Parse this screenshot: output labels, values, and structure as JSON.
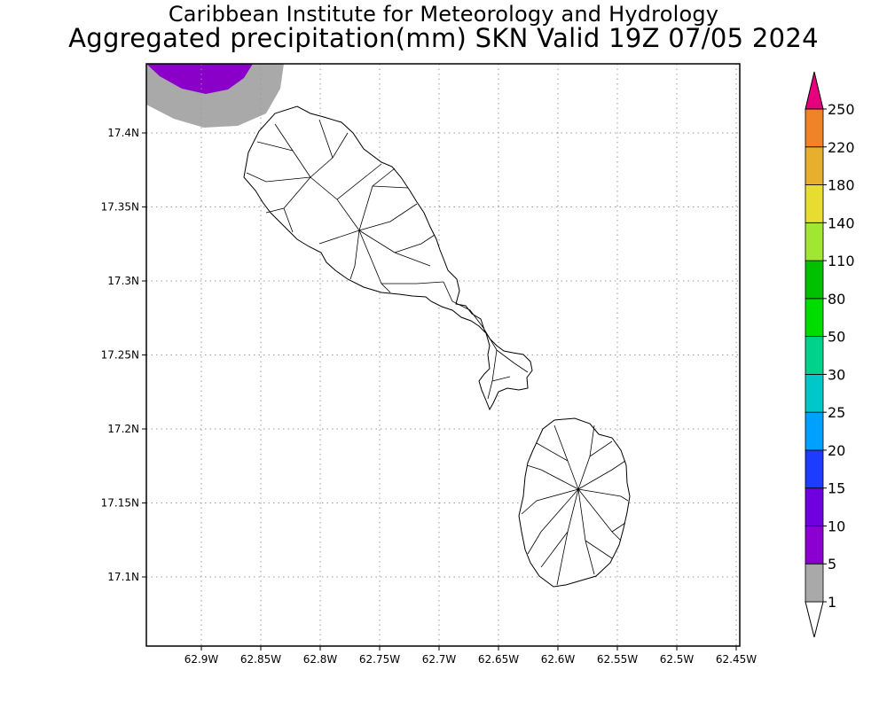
{
  "header": {
    "title_line1": "Caribbean Institute for Meteorology and Hydrology",
    "title_line2": "Aggregated precipitation(mm) SKN Valid 19Z 07/05 2024"
  },
  "map": {
    "lon_ticks": [
      "62.9W",
      "62.85W",
      "62.8W",
      "62.75W",
      "62.7W",
      "62.65W",
      "62.6W",
      "62.55W",
      "62.5W",
      "62.45W"
    ],
    "lat_ticks": [
      "17.4N",
      "17.35N",
      "17.3N",
      "17.25N",
      "17.2N",
      "17.15N",
      "17.1N"
    ],
    "islands": [
      "St. Kitts",
      "Nevis"
    ],
    "rain_colors": {
      "trace": "#a9a9a9",
      "five_to_ten": "#8b00c8"
    }
  },
  "colorbar": {
    "levels": [
      "1",
      "5",
      "10",
      "15",
      "20",
      "25",
      "30",
      "50",
      "80",
      "110",
      "140",
      "180",
      "220",
      "250"
    ],
    "colors": [
      "#a9a9a9",
      "#8b00d1",
      "#7000e0",
      "#1e3cff",
      "#00a0ff",
      "#00c8c8",
      "#00d28c",
      "#00dc00",
      "#00c000",
      "#a0e632",
      "#e6dc32",
      "#e6af2d",
      "#f08228",
      "#fa3c3c",
      "#e6007d"
    ],
    "top_color": "#e6007d",
    "bottom_color": "#ffffff"
  }
}
